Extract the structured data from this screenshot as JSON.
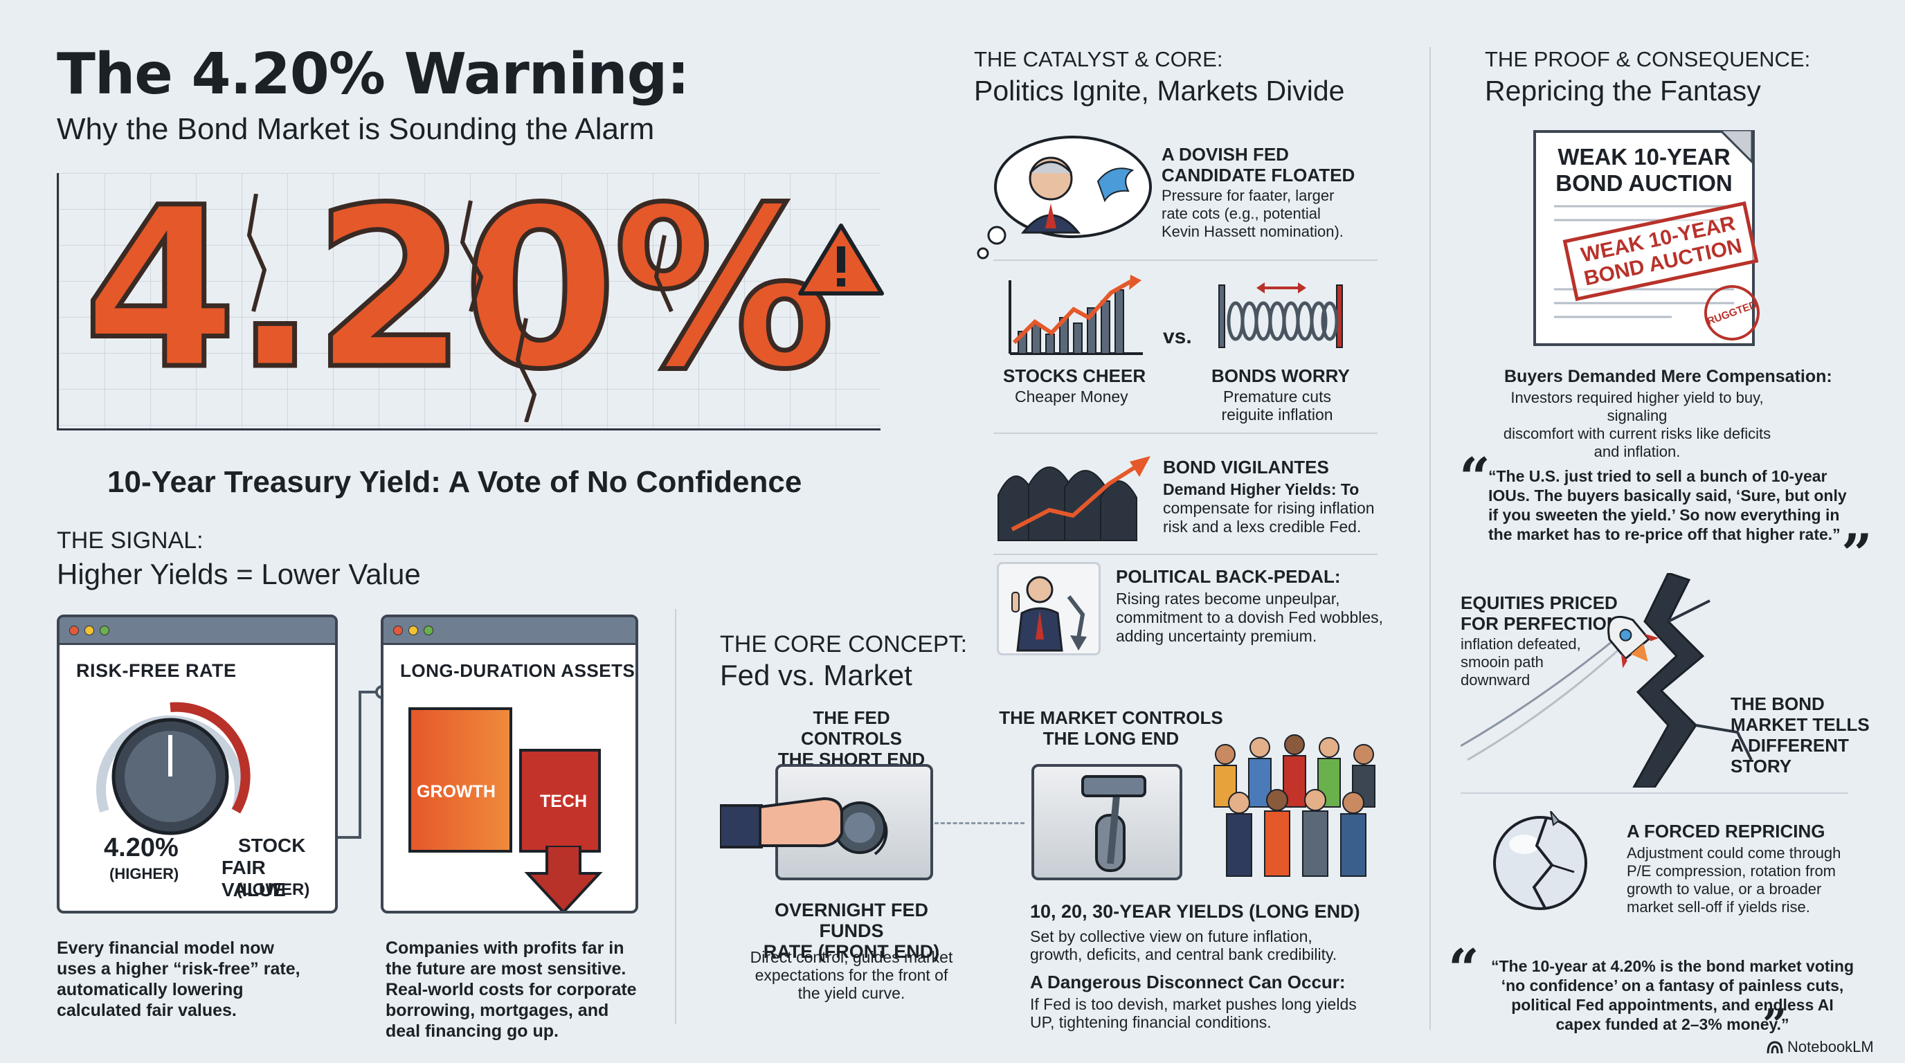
{
  "header": {
    "title": "The 4.20% Warning:",
    "subtitle": "Why the Bond Market is Sounding the Alarm"
  },
  "hero": {
    "big_value": "4.20%",
    "caption": "10-Year Treasury Yield: A Vote of No Confidence"
  },
  "signal": {
    "kicker": "THE SIGNAL:",
    "title": "Higher Yields = Lower Value",
    "risk_free": {
      "label": "RISK-FREE RATE",
      "value": "4.20%",
      "value_note": "(HIGHER)",
      "stock_label": "STOCK",
      "stock_label2": "FAIR VALUE",
      "stock_note": "(LOWER)",
      "body": [
        "Every financial model now",
        "uses a higher “risk-free” rate,",
        "automatically lowering",
        "calculated fair values."
      ]
    },
    "long_duration": {
      "label": "LONG-DURATION ASSETS",
      "block1": "GROWTH",
      "block2": "TECH",
      "body": [
        "Companies with profits far in",
        "the future are most sensitive.",
        "Real-world costs for corporate",
        "borrowing, mortgages, and",
        "deal financing go up."
      ]
    }
  },
  "core": {
    "kicker": "THE CORE CONCEPT:",
    "title": "Fed vs. Market",
    "fed": {
      "heading": [
        "THE FED CONTROLS",
        "THE SHORT END"
      ],
      "sub": [
        "OVERNIGHT FED FUNDS",
        "RATE (FRONT END)"
      ],
      "body": [
        "Direct control; guides market",
        "expectations for the front of",
        "the yield curve."
      ]
    },
    "market": {
      "heading": [
        "THE MARKET CONTROLS",
        "THE LONG END"
      ],
      "sub": "10, 20, 30-YEAR YIELDS (LONG END)",
      "body": [
        "Set by collective view on future inflation,",
        "growth, deficits, and central bank credibility."
      ],
      "disconnect_title": "A Dangerous Disconnect Can Occur:",
      "disconnect_body": [
        "If Fed is too devish, market pushes long yields",
        "UP, tightening financial conditions."
      ]
    }
  },
  "catalyst": {
    "kicker": "THE CATALYST & CORE:",
    "title": "Politics Ignite, Markets Divide",
    "dovish": {
      "heading": [
        "A DOVISH FED",
        "CANDIDATE FLOATED"
      ],
      "body": [
        "Pressure for faater, larger",
        "rate cots (e.g., potential",
        "Kevin Hassett nomination)."
      ]
    },
    "stocks": {
      "heading": "STOCKS CHEER",
      "body": "Cheaper Money"
    },
    "vs": "vs.",
    "bonds": {
      "heading": "BONDS WORRY",
      "body": [
        "Premature cuts",
        "reiguite inflation"
      ]
    },
    "vigilantes": {
      "heading": "BOND VIGILANTES",
      "body": [
        "Demand Higher Yields: To",
        "compensate for rising inflation",
        "risk and a lexs credible Fed."
      ]
    },
    "backpedal": {
      "heading": "POLITICAL BACK-PEDAL:",
      "body": [
        "Rising rates become unpeulpar,",
        "commitment to a dovish Fed wobbles,",
        "adding uncertainty premium."
      ]
    }
  },
  "proof": {
    "kicker": "THE PROOF & CONSEQUENCE:",
    "title": "Repricing the Fantasy",
    "auction": {
      "doc_title": [
        "WEAK 10-YEAR",
        "BOND AUCTION"
      ],
      "stamp": [
        "WEAK 10-YEAR",
        "BOND AUCTION"
      ],
      "seal": "RUGGTED"
    },
    "buyers": {
      "heading": "Buyers Demanded Mere Compensation:",
      "body": [
        "Investors required higher yield to buy, signaling",
        "discomfort with current risks like deficits",
        "and inflation."
      ]
    },
    "quote1": [
      "“The U.S. just tried to sell a bunch of 10-year",
      "IOUs. The buyers basically said, ‘Sure, but only",
      "if you sweeten the yield.’ So now everything in",
      "the market has to re-price off that higher rate.”"
    ],
    "equities": {
      "heading": [
        "EQUITIES PRICED",
        "FOR PERFECTION"
      ],
      "body": [
        "inflation defeated,",
        "smooin path",
        "downward"
      ]
    },
    "bond_story": [
      "THE BOND",
      "MARKET TELLS",
      "A DIFFERENT",
      "STORY"
    ],
    "forced": {
      "heading": "A FORCED REPRICING",
      "body": [
        "Adjustment could come through",
        "P/E compression, rotation from",
        "growth to value, or a broader",
        "market sell-off if yields rise."
      ]
    },
    "quote2": [
      "“The 10-year at 4.20% is the bond market voting",
      "‘no confidence’ on a fantasy of painless cuts,",
      "political Fed appointments, and endless AI",
      "capex funded at 2–3% money.”"
    ]
  },
  "brand": "NotebookLM",
  "colors": {
    "accent_orange": "#e5582a",
    "accent_red": "#b8322a",
    "dark": "#1c2128",
    "background": "#e9eef2"
  }
}
